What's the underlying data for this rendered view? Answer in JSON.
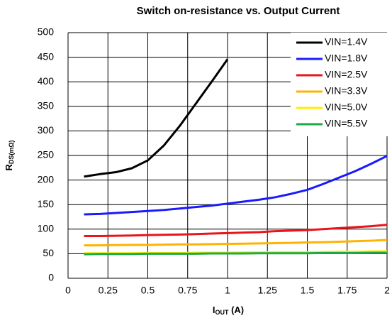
{
  "chart_data": {
    "type": "line",
    "title": "Switch on-resistance vs. Output Current",
    "ylabel": {
      "main": "R",
      "sub": "DS(mΩ)"
    },
    "xlabel": {
      "main": "I",
      "sub": "OUT",
      "rest": " (A)"
    },
    "x": [
      0.1,
      0.2,
      0.3,
      0.4,
      0.5,
      0.6,
      0.7,
      0.8,
      0.9,
      1.0,
      1.1,
      1.2,
      1.3,
      1.4,
      1.5,
      1.6,
      1.7,
      1.8,
      1.9,
      2.0
    ],
    "series": [
      {
        "name": "VIN=1.4V",
        "color": "#000000",
        "values": [
          207,
          212,
          216,
          224,
          240,
          270,
          310,
          355,
          400,
          446,
          null,
          null,
          null,
          null,
          null,
          null,
          null,
          null,
          null,
          null
        ]
      },
      {
        "name": "VIN=1.8V",
        "color": "#1a1aff",
        "values": [
          130,
          131,
          133,
          135,
          137,
          139,
          142,
          145,
          148,
          152,
          156,
          160,
          165,
          172,
          180,
          192,
          205,
          218,
          233,
          249
        ]
      },
      {
        "name": "VIN=2.5V",
        "color": "#e8151b",
        "values": [
          86,
          86,
          86.5,
          87,
          88,
          88.5,
          89,
          90,
          91,
          92,
          93,
          94,
          96,
          97,
          98,
          100,
          102,
          104,
          106,
          109
        ]
      },
      {
        "name": "VIN=3.3V",
        "color": "#ffb300",
        "values": [
          67,
          67,
          67.5,
          68,
          68,
          68.5,
          69,
          69,
          69.5,
          70,
          70.5,
          71,
          71.5,
          72,
          73,
          73.5,
          74.5,
          75.5,
          76.5,
          78
        ]
      },
      {
        "name": "VIN=5.0V",
        "color": "#ffee00",
        "values": [
          51,
          51,
          51,
          51,
          51.5,
          51.5,
          51.5,
          52,
          52,
          52,
          52.5,
          52.5,
          53,
          53,
          53,
          53.5,
          54,
          54,
          54.5,
          55
        ]
      },
      {
        "name": "VIN=5.5V",
        "color": "#1aaa4a",
        "values": [
          49,
          49.5,
          49.5,
          49.5,
          50,
          50,
          50,
          50,
          50.5,
          50.5,
          50.5,
          51,
          51,
          51,
          51,
          51.5,
          51.5,
          51.5,
          52,
          52
        ]
      }
    ],
    "xlim": [
      0,
      2
    ],
    "xticks": [
      0,
      0.25,
      0.5,
      0.75,
      1,
      1.25,
      1.5,
      1.75,
      2
    ],
    "ylim": [
      0,
      500
    ],
    "yticks": [
      0,
      50,
      100,
      150,
      200,
      250,
      300,
      350,
      400,
      450,
      500
    ],
    "grid": true,
    "legend": "upper right"
  }
}
